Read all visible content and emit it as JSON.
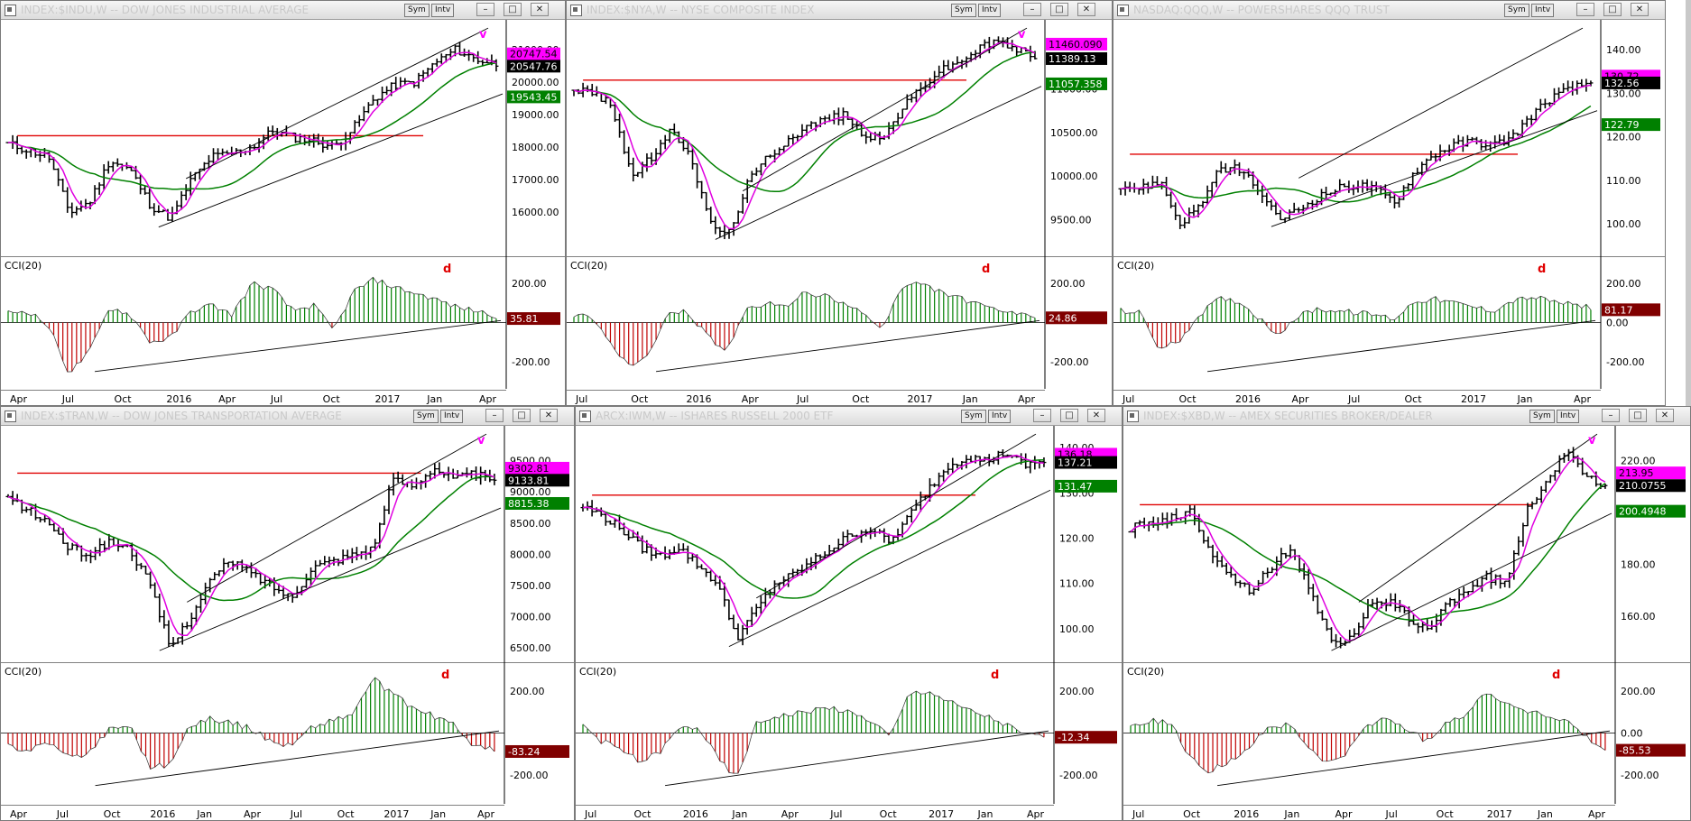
{
  "colors": {
    "bg": "#ffffff",
    "ma_fast": "#e000e0",
    "ma_slow": "#008000",
    "resistance": "#e00000",
    "cci_up": "#008000",
    "cci_down": "#c00000",
    "label_black": "#000000",
    "label_magenta": "#ff00ff",
    "label_green": "#008000",
    "label_maroon": "#800000",
    "annotation": "#ff00ff",
    "annotation_d": "#e00000"
  },
  "chart_data": [
    {
      "id": "indu",
      "type": "ohlc",
      "title": "INDEX:$INDU,W -- DOW JONES INDUSTRIAL AVERAGE",
      "sym_label": "Sym",
      "intv_label": "Intv",
      "ylim": [
        14700,
        21800
      ],
      "yticks": [
        "16000.00",
        "17000.00",
        "18000.00",
        "19000.00",
        "20000.00",
        "21000.00"
      ],
      "ytick_values": [
        16000,
        17000,
        18000,
        19000,
        20000,
        21000
      ],
      "close_anchors": [
        18100,
        17900,
        17700,
        16000,
        16300,
        17600,
        17300,
        16200,
        15800,
        17000,
        17700,
        17800,
        18000,
        18500,
        18300,
        18200,
        18000,
        18600,
        19500,
        19900,
        20000,
        20600,
        21000,
        20700,
        20550
      ],
      "ma_fast_label": "20747.54",
      "last_label": "20547.76",
      "ma_slow_label": "19543.45",
      "ma_slow_value": 19543,
      "resistance_level": 18350,
      "annotation_v": "v",
      "annotation_d": "d",
      "cci_label": "CCI(20)",
      "cci_yticks": [
        "200.00",
        "-200.00"
      ],
      "cci_value_label": "35.81",
      "cci_anchors": [
        50,
        60,
        -20,
        -260,
        -150,
        80,
        40,
        -100,
        -80,
        60,
        90,
        40,
        200,
        170,
        60,
        90,
        -40,
        160,
        220,
        180,
        150,
        120,
        80,
        60,
        35
      ],
      "x_labels": [
        "Apr",
        "Jul",
        "Oct",
        "2016",
        "Apr",
        "Jul",
        "Oct",
        "2017",
        "Jan",
        "Apr"
      ]
    },
    {
      "id": "nya",
      "type": "ohlc",
      "title": "INDEX:$NYA,W -- NYSE COMPOSITE INDEX",
      "sym_label": "Sym",
      "intv_label": "Intv",
      "ylim": [
        9100,
        11750
      ],
      "yticks": [
        "9500.00",
        "10000.00",
        "10500.00",
        "11000.00"
      ],
      "ytick_values": [
        9500,
        10000,
        10500,
        11000
      ],
      "close_anchors": [
        11000,
        10950,
        10800,
        10000,
        10200,
        10500,
        10300,
        9500,
        9300,
        9900,
        10200,
        10400,
        10550,
        10650,
        10700,
        10500,
        10400,
        10750,
        11000,
        11200,
        11300,
        11450,
        11550,
        11450,
        11390
      ],
      "ma_fast_label": "11460.090",
      "last_label": "11389.13",
      "ma_slow_label": "11057.358",
      "ma_slow_value": 11057,
      "resistance_level": 11100,
      "annotation_v": "v",
      "annotation_d": "d",
      "cci_label": "CCI(20)",
      "cci_yticks": [
        "200.00",
        "-200.00"
      ],
      "cci_value_label": "24.86",
      "cci_anchors": [
        40,
        30,
        -120,
        -230,
        -150,
        60,
        50,
        -80,
        -140,
        60,
        100,
        80,
        150,
        140,
        90,
        60,
        -40,
        170,
        200,
        160,
        130,
        90,
        70,
        40,
        25
      ],
      "x_labels": [
        "Jul",
        "Oct",
        "2016",
        "Apr",
        "Jul",
        "Oct",
        "2017",
        "Jan",
        "Apr"
      ]
    },
    {
      "id": "qqq",
      "type": "ohlc",
      "title": "NASDAQ:QQQ,W -- POWERSHARES QQQ TRUST",
      "sym_label": "Sym",
      "intv_label": "Intv",
      "ylim": [
        93,
        146
      ],
      "yticks": [
        "100.00",
        "110.00",
        "120.00",
        "130.00",
        "140.00"
      ],
      "ytick_values": [
        100,
        110,
        120,
        130,
        140
      ],
      "close_anchors": [
        109,
        108,
        110,
        100,
        104,
        112,
        113,
        108,
        101,
        103,
        106,
        108,
        109,
        108,
        105,
        112,
        116,
        118,
        119,
        118,
        120,
        125,
        129,
        131,
        132.5
      ],
      "ma_fast_label": "130.72",
      "last_label": "132.56",
      "ma_slow_label": "122.79",
      "ma_slow_value": 122.79,
      "resistance_level": 116,
      "annotation_v": "",
      "annotation_d": "d",
      "cci_label": "CCI(20)",
      "cci_yticks": [
        "200.00",
        "0.00",
        "-200.00"
      ],
      "cci_value_label": "81.17",
      "cci_anchors": [
        60,
        50,
        -140,
        -90,
        40,
        120,
        110,
        30,
        -60,
        30,
        70,
        60,
        50,
        40,
        20,
        110,
        120,
        100,
        80,
        60,
        110,
        130,
        110,
        90,
        80
      ],
      "x_labels": [
        "Jul",
        "Oct",
        "2016",
        "Apr",
        "Jul",
        "Oct",
        "2017",
        "Jan",
        "Apr"
      ]
    },
    {
      "id": "tran",
      "type": "ohlc",
      "title": "INDEX:$TRAN,W -- DOW JONES TRANSPORTATION AVERAGE",
      "sym_label": "Sym",
      "intv_label": "Intv",
      "ylim": [
        6300,
        10000
      ],
      "yticks": [
        "6500.00",
        "7000.00",
        "7500.00",
        "8000.00",
        "8500.00",
        "9000.00",
        "9500.00"
      ],
      "ytick_values": [
        6500,
        7000,
        7500,
        8000,
        8500,
        9000,
        9500
      ],
      "close_anchors": [
        8900,
        8700,
        8500,
        8100,
        8000,
        8200,
        8100,
        7500,
        6500,
        7000,
        7600,
        7900,
        7700,
        7500,
        7300,
        7800,
        7900,
        8000,
        8100,
        9200,
        9100,
        9400,
        9200,
        9300,
        9134
      ],
      "ma_fast_label": "9302.81",
      "last_label": "9133.81",
      "ma_slow_label": "8815.38",
      "ma_slow_value": 8815,
      "resistance_level": 9300,
      "annotation_v": "v",
      "annotation_d": "d",
      "cci_label": "CCI(20)",
      "cci_yticks": [
        "200.00",
        "-200.00"
      ],
      "cci_value_label": "-83.24",
      "cci_anchors": [
        -60,
        -80,
        -40,
        -120,
        -90,
        20,
        40,
        -160,
        -150,
        40,
        70,
        50,
        20,
        -40,
        -60,
        30,
        60,
        90,
        260,
        180,
        120,
        80,
        40,
        -60,
        -83
      ],
      "x_labels": [
        "Apr",
        "Jul",
        "Oct",
        "2016",
        "Jan",
        "Apr",
        "Jul",
        "Oct",
        "2017",
        "Jan",
        "Apr"
      ]
    },
    {
      "id": "iwm",
      "type": "ohlc",
      "title": "ARCX:IWM,W -- ISHARES RUSSELL 2000 ETF",
      "sym_label": "Sym",
      "intv_label": "Intv",
      "ylim": [
        93,
        144
      ],
      "yticks": [
        "100.00",
        "110.00",
        "120.00",
        "130.00",
        "140.00"
      ],
      "ytick_values": [
        100,
        110,
        120,
        130,
        140
      ],
      "close_anchors": [
        127,
        125,
        122,
        118,
        116,
        118,
        114,
        110,
        98,
        104,
        110,
        112,
        115,
        118,
        121,
        122,
        119,
        125,
        131,
        136,
        138,
        137,
        139,
        136,
        137.2
      ],
      "ma_fast_label": "136.18",
      "last_label": "137.21",
      "ma_slow_label": "131.47",
      "ma_slow_value": 131.47,
      "resistance_level": 129.5,
      "annotation_v": "",
      "annotation_d": "d",
      "cci_label": "CCI(20)",
      "cci_yticks": [
        "200.00",
        "-200.00"
      ],
      "cci_value_label": "-12.34",
      "cci_anchors": [
        40,
        -40,
        -80,
        -140,
        -90,
        20,
        30,
        -120,
        -220,
        40,
        80,
        90,
        110,
        120,
        90,
        60,
        -20,
        190,
        200,
        150,
        110,
        80,
        40,
        -10,
        -12
      ],
      "x_labels": [
        "Jul",
        "Oct",
        "2016",
        "Jan",
        "Apr",
        "Jul",
        "Oct",
        "2017",
        "Jan",
        "Apr"
      ]
    },
    {
      "id": "xbd",
      "type": "ohlc",
      "title": "INDEX:$XBD,W -- AMEX SECURITIES BROKER/DEALER",
      "sym_label": "Sym",
      "intv_label": "Intv",
      "ylim": [
        143,
        232
      ],
      "yticks": [
        "160.00",
        "180.00",
        "200.00",
        "220.00"
      ],
      "ytick_values": [
        160,
        180,
        200,
        220
      ],
      "close_anchors": [
        194,
        196,
        198,
        200,
        186,
        176,
        170,
        178,
        186,
        172,
        152,
        150,
        163,
        166,
        160,
        154,
        165,
        170,
        175,
        173,
        200,
        212,
        223,
        215,
        210
      ],
      "ma_fast_label": "213.95",
      "last_label": "210.0755",
      "ma_slow_label": "200.4948",
      "ma_slow_value": 200.49,
      "resistance_level": 203,
      "annotation_v": "v",
      "annotation_d": "d",
      "cci_label": "CCI(20)",
      "cci_yticks": [
        "200.00",
        "0.00",
        "-200.00"
      ],
      "cci_value_label": "-85.53",
      "cci_anchors": [
        40,
        60,
        50,
        -120,
        -180,
        -140,
        -60,
        30,
        40,
        -70,
        -150,
        -90,
        40,
        70,
        20,
        -40,
        60,
        90,
        200,
        140,
        110,
        80,
        60,
        -20,
        -85
      ],
      "x_labels": [
        "Jul",
        "Oct",
        "2016",
        "Jan",
        "Apr",
        "Jul",
        "Oct",
        "2017",
        "Jan",
        "Apr"
      ]
    }
  ]
}
